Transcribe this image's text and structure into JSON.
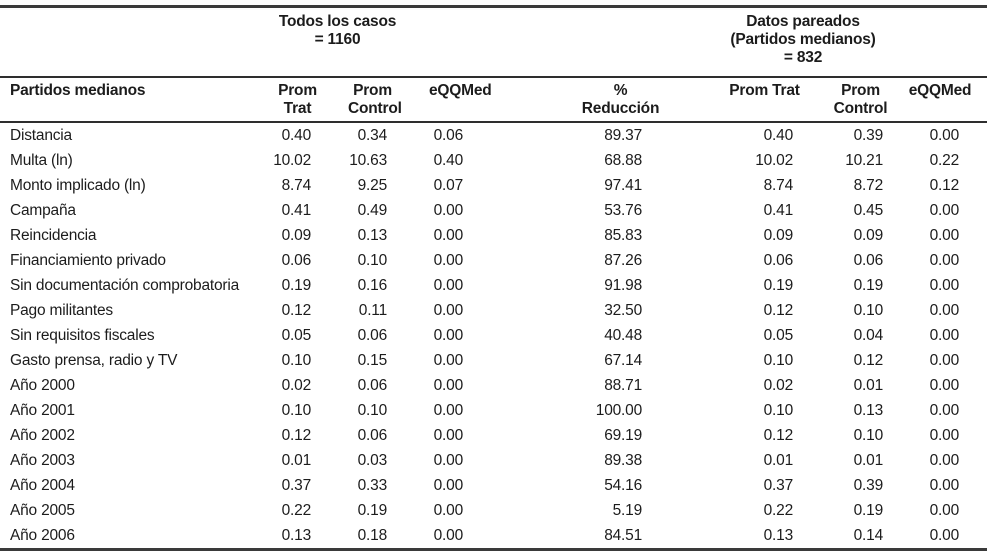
{
  "table": {
    "groups": {
      "all_cases": "Todos los casos\n= 1160",
      "paired": "Datos pareados\n(Partidos medianos)\n= 832"
    },
    "col_headers": {
      "label": "Partidos medianos",
      "prom_trat_all": "Prom Trat",
      "prom_control_all": "Prom\nControl",
      "eqqmed_all": "eQQMed",
      "pct_reduccion": "%\nReducción",
      "prom_trat_paired": "Prom Trat",
      "prom_control_paired": "Prom\nControl",
      "eqqmed_paired": "eQQMed"
    },
    "rows": [
      {
        "label": "Distancia",
        "values": [
          "0.40",
          "0.34",
          "0.06",
          "89.37",
          "0.40",
          "0.39",
          "0.00"
        ]
      },
      {
        "label": "Multa (ln)",
        "values": [
          "10.02",
          "10.63",
          "0.40",
          "68.88",
          "10.02",
          "10.21",
          "0.22"
        ]
      },
      {
        "label": "Monto implicado (ln)",
        "values": [
          "8.74",
          "9.25",
          "0.07",
          "97.41",
          "8.74",
          "8.72",
          "0.12"
        ]
      },
      {
        "label": "Campaña",
        "values": [
          "0.41",
          "0.49",
          "0.00",
          "53.76",
          "0.41",
          "0.45",
          "0.00"
        ]
      },
      {
        "label": "Reincidencia",
        "values": [
          "0.09",
          "0.13",
          "0.00",
          "85.83",
          "0.09",
          "0.09",
          "0.00"
        ]
      },
      {
        "label": "Financiamiento privado",
        "values": [
          "0.06",
          "0.10",
          "0.00",
          "87.26",
          "0.06",
          "0.06",
          "0.00"
        ]
      },
      {
        "label": "Sin documentación comprobatoria",
        "values": [
          "0.19",
          "0.16",
          "0.00",
          "91.98",
          "0.19",
          "0.19",
          "0.00"
        ]
      },
      {
        "label": "Pago militantes",
        "values": [
          "0.12",
          "0.11",
          "0.00",
          "32.50",
          "0.12",
          "0.10",
          "0.00"
        ]
      },
      {
        "label": "Sin requisitos fiscales",
        "values": [
          "0.05",
          "0.06",
          "0.00",
          "40.48",
          "0.05",
          "0.04",
          "0.00"
        ]
      },
      {
        "label": "Gasto prensa, radio y TV",
        "values": [
          "0.10",
          "0.15",
          "0.00",
          "67.14",
          "0.10",
          "0.12",
          "0.00"
        ]
      },
      {
        "label": "Año 2000",
        "values": [
          "0.02",
          "0.06",
          "0.00",
          "88.71",
          "0.02",
          "0.01",
          "0.00"
        ]
      },
      {
        "label": "Año 2001",
        "values": [
          "0.10",
          "0.10",
          "0.00",
          "100.00",
          "0.10",
          "0.13",
          "0.00"
        ]
      },
      {
        "label": "Año 2002",
        "values": [
          "0.12",
          "0.06",
          "0.00",
          "69.19",
          "0.12",
          "0.10",
          "0.00"
        ]
      },
      {
        "label": "Año 2003",
        "values": [
          "0.01",
          "0.03",
          "0.00",
          "89.38",
          "0.01",
          "0.01",
          "0.00"
        ]
      },
      {
        "label": "Año 2004",
        "values": [
          "0.37",
          "0.33",
          "0.00",
          "54.16",
          "0.37",
          "0.39",
          "0.00"
        ]
      },
      {
        "label": "Año 2005",
        "values": [
          "0.22",
          "0.19",
          "0.00",
          "5.19",
          "0.22",
          "0.19",
          "0.00"
        ]
      },
      {
        "label": "Año 2006",
        "values": [
          "0.13",
          "0.18",
          "0.00",
          "84.51",
          "0.13",
          "0.14",
          "0.00"
        ]
      }
    ]
  },
  "chart_data": {
    "type": "table",
    "title": "",
    "group_headers": [
      "Todos los casos = 1160",
      "Datos pareados (Partidos medianos) = 832"
    ],
    "columns": [
      "Partidos medianos",
      "Prom Trat",
      "Prom Control",
      "eQQMed",
      "% Reducción",
      "Prom Trat",
      "Prom Control",
      "eQQMed"
    ]
  }
}
